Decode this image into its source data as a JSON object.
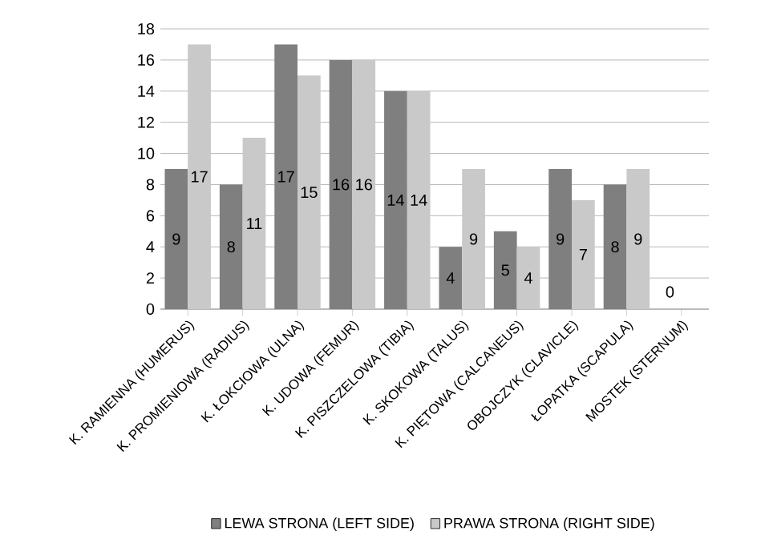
{
  "chart_data": {
    "type": "bar",
    "categories": [
      "K. RAMIENNA (HUMERUS)",
      "K. PROMIENIOWA (RADIUS)",
      "K. ŁOKCIOWA (ULNA)",
      "K. UDOWA (FEMUR)",
      "K. PISZCZELOWA (TIBIA)",
      "K. SKOKOWA (TALUS)",
      "K. PIĘTOWA (CALCANEUS)",
      "OBOJCZYK (CLAVICLE)",
      "ŁOPATKA (SCAPULA)",
      "MOSTEK (STERNUM)"
    ],
    "series": [
      {
        "name": "LEWA STRONA (LEFT SIDE)",
        "color": "#7f7f7f",
        "values": [
          9,
          8,
          17,
          16,
          14,
          4,
          5,
          9,
          8,
          0
        ],
        "value_labels": [
          "9",
          "8",
          "17",
          "16",
          "14",
          "4",
          "5",
          "9",
          "8",
          "0"
        ]
      },
      {
        "name": "PRAWA STRONA (RIGHT SIDE)",
        "color": "#c9c9c9",
        "values": [
          17,
          11,
          15,
          16,
          14,
          9,
          4,
          7,
          9,
          0
        ],
        "value_labels": [
          "17",
          "11",
          "15",
          "16",
          "14",
          "9",
          "4",
          "7",
          "9",
          null
        ]
      }
    ],
    "ylim": [
      0,
      18
    ],
    "yticks": [
      0,
      2,
      4,
      6,
      8,
      10,
      12,
      14,
      16,
      18
    ],
    "grid": "y",
    "legend": "bottom"
  }
}
